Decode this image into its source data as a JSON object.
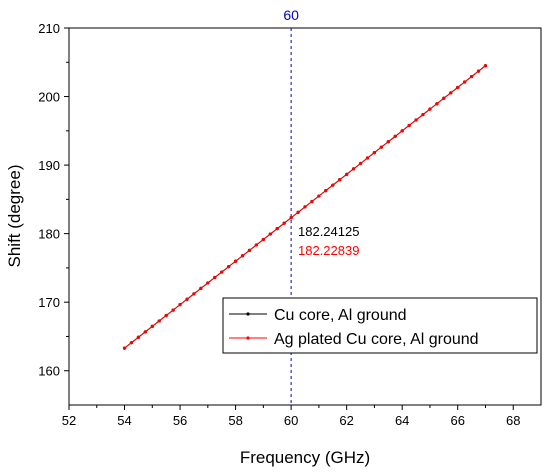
{
  "chart_data": {
    "type": "line",
    "title": "",
    "xlabel": "Frequency (GHz)",
    "ylabel": "Shift (degree)",
    "xlim": [
      52,
      69
    ],
    "ylim": [
      155,
      210
    ],
    "xticks": [
      "52",
      "54",
      "56",
      "58",
      "60",
      "62",
      "64",
      "66",
      "68"
    ],
    "yticks": [
      "160",
      "170",
      "180",
      "190",
      "200",
      "210"
    ],
    "grid": false,
    "legend_position": "bottom-right",
    "series": [
      {
        "name": "Cu core, Al ground",
        "color": "#000000",
        "x_start": 54,
        "x_end": 67,
        "x_step": 0.25,
        "y_start": 163.3,
        "y_end": 204.5
      },
      {
        "name": "Ag plated Cu core, Al ground",
        "color": "#ff0000",
        "x_start": 54,
        "x_end": 67,
        "x_step": 0.25,
        "y_start": 163.3,
        "y_end": 204.5
      }
    ],
    "reference_line": {
      "x": 60,
      "label": "60",
      "color": "#0000cc"
    },
    "annotations": [
      {
        "text": "182.24125",
        "color": "#000000"
      },
      {
        "text": "182.22839",
        "color": "#ff0000"
      }
    ]
  }
}
